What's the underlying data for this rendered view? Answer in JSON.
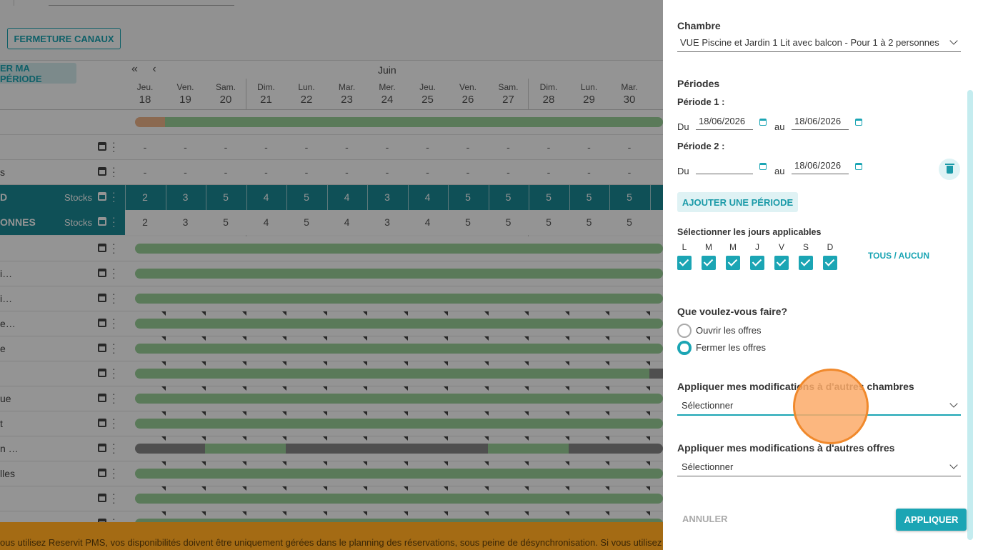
{
  "background": {
    "fermeture_label": "FERMETURE CANAUX",
    "periode_label": "ER MA PÉRIODE",
    "nav_arrows": "« ‹",
    "month": "Juin",
    "days": [
      {
        "name": "Jeu.",
        "num": "18"
      },
      {
        "name": "Ven.",
        "num": "19"
      },
      {
        "name": "Sam.",
        "num": "20"
      },
      {
        "name": "Dim.",
        "num": "21"
      },
      {
        "name": "Lun.",
        "num": "22"
      },
      {
        "name": "Mar.",
        "num": "23"
      },
      {
        "name": "Mer.",
        "num": "24"
      },
      {
        "name": "Jeu.",
        "num": "25"
      },
      {
        "name": "Ven.",
        "num": "26"
      },
      {
        "name": "Sam.",
        "num": "27"
      },
      {
        "name": "Dim.",
        "num": "28"
      },
      {
        "name": "Lun.",
        "num": "29"
      },
      {
        "name": "Mar.",
        "num": "30"
      }
    ],
    "dash_rows": [
      {
        "label": "",
        "cells": [
          "-",
          "-",
          "-",
          "-",
          "-",
          "-",
          "-",
          "-",
          "-",
          "-",
          "-",
          "-",
          "-"
        ]
      },
      {
        "label": "s",
        "cells": [
          "-",
          "-",
          "-",
          "-",
          "-",
          "-",
          "-",
          "-",
          "-",
          "-",
          "-",
          "-",
          "-"
        ]
      }
    ],
    "stock_rows": [
      {
        "label": "D",
        "stock_label": "Stocks",
        "cells": [
          "2",
          "3",
          "5",
          "4",
          "5",
          "4",
          "3",
          "4",
          "5",
          "5",
          "5",
          "5",
          "5"
        ]
      },
      {
        "label": "ONNES",
        "stock_label": "Stocks",
        "cells": [
          "2",
          "3",
          "5",
          "4",
          "5",
          "4",
          "3",
          "4",
          "5",
          "5",
          "5",
          "5",
          "5"
        ]
      }
    ],
    "offer_rows": [
      "",
      "i…",
      "i…",
      "e…",
      "e",
      "",
      "ue",
      "t",
      "n …",
      "lles",
      "",
      "."
    ],
    "banner_text": "ous utilisez Reservit PMS, vos disponibilités doivent être uniquement gérées dans le planning des réservations, sous peine de désynchronisation. Si vous utilisez d"
  },
  "panel": {
    "chambre_label": "Chambre",
    "chambre_value": "VUE Piscine et Jardin 1 Lit avec balcon - Pour 1 à 2 personnes",
    "periodes_label": "Périodes",
    "periode1_label": "Période 1 :",
    "periode2_label": "Période 2 :",
    "du_label": "Du",
    "au_label": "au",
    "p1_from": "18/06/2026",
    "p1_to": "18/06/2026",
    "p2_from": "",
    "p2_to": "18/06/2026",
    "add_period_label": "AJOUTER UNE PÉRIODE",
    "jours_label": "Sélectionner les jours applicables",
    "jours": [
      "L",
      "M",
      "M",
      "J",
      "V",
      "S",
      "D"
    ],
    "tous_aucun_label": "TOUS / AUCUN",
    "question_label": "Que voulez-vous faire?",
    "option_open": "Ouvrir les offres",
    "option_close": "Fermer les offres",
    "selected_option": "close",
    "apply_rooms_label": "Appliquer mes modifications à d'autres chambres",
    "apply_rooms_value": "Sélectionner",
    "apply_offers_label": "Appliquer mes modifications à d'autres offres",
    "apply_offers_value": "Sélectionner",
    "cancel_label": "ANNULER",
    "apply_label": "APPLIQUER"
  },
  "colors": {
    "accent": "#1ba5b4",
    "stock_row": "#1b8b96",
    "bar_green": "#9bd29a",
    "banner": "#a46b14"
  }
}
